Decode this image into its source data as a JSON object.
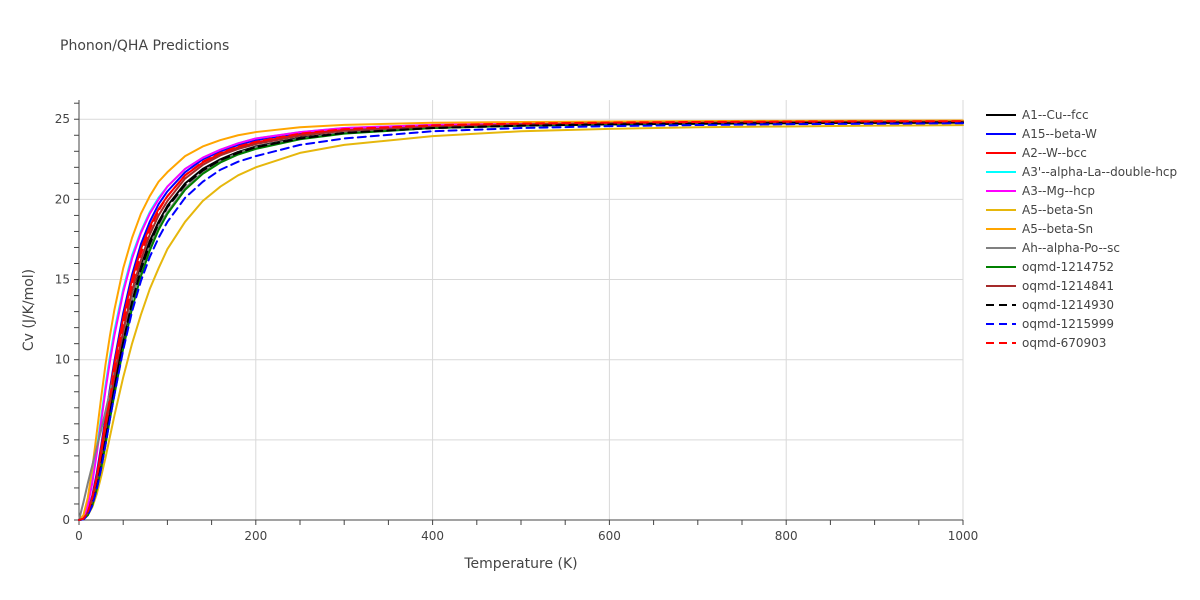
{
  "chart_data": {
    "type": "line",
    "title": "Phonon/QHA Predictions",
    "xlabel": "Temperature (K)",
    "ylabel": "Cv (J/K/mol)",
    "xlim": [
      0,
      1000
    ],
    "ylim": [
      0,
      26.2
    ],
    "x_ticks": [
      0,
      200,
      400,
      600,
      800,
      1000
    ],
    "y_ticks": [
      0,
      5,
      10,
      15,
      20,
      25
    ],
    "grid": true,
    "legend_position": "right",
    "x": [
      0,
      5,
      10,
      15,
      20,
      25,
      30,
      35,
      40,
      50,
      60,
      70,
      80,
      90,
      100,
      120,
      140,
      160,
      180,
      200,
      250,
      300,
      400,
      500,
      600,
      700,
      800,
      900,
      1000
    ],
    "series": [
      {
        "name": "A1--Cu--fcc",
        "color": "#000000",
        "dash": "solid",
        "values": [
          0,
          0.06,
          0.4,
          1.1,
          2.2,
          3.6,
          5.2,
          6.8,
          8.4,
          11.3,
          13.8,
          15.8,
          17.4,
          18.6,
          19.6,
          21.0,
          21.9,
          22.5,
          22.96,
          23.3,
          23.85,
          24.15,
          24.45,
          24.6,
          24.68,
          24.72,
          24.75,
          24.77,
          24.79
        ]
      },
      {
        "name": "A15--beta-W",
        "color": "#0000ff",
        "dash": "solid",
        "values": [
          0,
          0.1,
          0.55,
          1.5,
          2.9,
          4.6,
          6.4,
          8.2,
          9.9,
          12.9,
          15.3,
          17.2,
          18.6,
          19.7,
          20.5,
          21.7,
          22.5,
          23.0,
          23.4,
          23.7,
          24.15,
          24.4,
          24.6,
          24.72,
          24.78,
          24.82,
          24.84,
          24.86,
          24.87
        ]
      },
      {
        "name": "A2--W--bcc",
        "color": "#ff0000",
        "dash": "solid",
        "values": [
          0,
          0.08,
          0.5,
          1.4,
          2.7,
          4.4,
          6.2,
          8.0,
          9.7,
          12.6,
          15.0,
          16.9,
          18.3,
          19.4,
          20.2,
          21.5,
          22.3,
          22.85,
          23.25,
          23.55,
          24.05,
          24.35,
          24.6,
          24.72,
          24.78,
          24.82,
          24.84,
          24.86,
          24.88
        ]
      },
      {
        "name": "A3'--alpha-La--double-hcp",
        "color": "#00ffff",
        "dash": "solid",
        "values": [
          0,
          0.2,
          1.0,
          2.5,
          4.4,
          6.4,
          8.4,
          10.2,
          11.8,
          14.4,
          16.5,
          18.0,
          19.2,
          20.1,
          20.8,
          21.9,
          22.6,
          23.1,
          23.5,
          23.8,
          24.2,
          24.45,
          24.65,
          24.75,
          24.8,
          24.83,
          24.86,
          24.88,
          24.89
        ]
      },
      {
        "name": "A3--Mg--hcp",
        "color": "#ff00ff",
        "dash": "solid",
        "values": [
          0,
          0.15,
          0.9,
          2.3,
          4.1,
          6.1,
          8.1,
          9.9,
          11.5,
          14.2,
          16.3,
          17.9,
          19.1,
          20.0,
          20.8,
          21.9,
          22.6,
          23.1,
          23.5,
          23.8,
          24.2,
          24.45,
          24.65,
          24.75,
          24.8,
          24.83,
          24.86,
          24.88,
          24.89
        ]
      },
      {
        "name": "A5--beta-Sn",
        "color": "#e6b70c",
        "dash": "solid",
        "values": [
          0,
          0.05,
          0.3,
          0.8,
          1.6,
          2.7,
          3.9,
          5.2,
          6.5,
          8.9,
          11.0,
          12.8,
          14.4,
          15.7,
          16.9,
          18.6,
          19.9,
          20.8,
          21.5,
          22.0,
          22.9,
          23.4,
          23.95,
          24.25,
          24.4,
          24.5,
          24.55,
          24.6,
          24.63
        ]
      },
      {
        "name": "A5--beta-Sn",
        "color": "#ffa500",
        "dash": "solid",
        "values": [
          0,
          0.3,
          1.4,
          3.2,
          5.4,
          7.6,
          9.7,
          11.5,
          13.1,
          15.7,
          17.6,
          19.1,
          20.2,
          21.1,
          21.7,
          22.7,
          23.3,
          23.7,
          24.0,
          24.2,
          24.5,
          24.65,
          24.78,
          24.83,
          24.86,
          24.88,
          24.9,
          24.91,
          24.92
        ]
      },
      {
        "name": "Ah--alpha-Po--sc",
        "color": "#808080",
        "dash": "solid",
        "values": [
          0,
          1.1,
          2.3,
          3.4,
          4.5,
          5.6,
          6.8,
          8.0,
          9.2,
          11.6,
          13.8,
          15.6,
          17.1,
          18.3,
          19.2,
          20.7,
          21.7,
          22.4,
          22.9,
          23.25,
          23.8,
          24.15,
          24.45,
          24.6,
          24.68,
          24.72,
          24.75,
          24.78,
          24.8
        ]
      },
      {
        "name": "oqmd-1214752",
        "color": "#008000",
        "dash": "solid",
        "values": [
          0,
          0.04,
          0.3,
          0.9,
          1.9,
          3.2,
          4.7,
          6.3,
          7.8,
          10.7,
          13.2,
          15.2,
          16.8,
          18.1,
          19.1,
          20.6,
          21.6,
          22.3,
          22.8,
          23.15,
          23.75,
          24.1,
          24.45,
          24.6,
          24.68,
          24.72,
          24.76,
          24.78,
          24.8
        ]
      },
      {
        "name": "oqmd-1214841",
        "color": "#a52a2a",
        "dash": "solid",
        "values": [
          0,
          0.07,
          0.45,
          1.2,
          2.4,
          3.9,
          5.6,
          7.3,
          8.9,
          11.8,
          14.3,
          16.2,
          17.8,
          19.0,
          19.9,
          21.3,
          22.15,
          22.75,
          23.15,
          23.45,
          23.98,
          24.28,
          24.55,
          24.68,
          24.75,
          24.79,
          24.82,
          24.84,
          24.85
        ]
      },
      {
        "name": "oqmd-1214930",
        "color": "#000000",
        "dash": "dash",
        "values": [
          0,
          0.05,
          0.35,
          1.0,
          2.0,
          3.4,
          5.0,
          6.6,
          8.2,
          11.1,
          13.6,
          15.6,
          17.2,
          18.5,
          19.5,
          20.9,
          21.8,
          22.45,
          22.9,
          23.25,
          23.8,
          24.15,
          24.45,
          24.6,
          24.68,
          24.73,
          24.76,
          24.78,
          24.8
        ]
      },
      {
        "name": "oqmd-1215999",
        "color": "#0000ff",
        "dash": "dash",
        "values": [
          0,
          0.04,
          0.3,
          0.9,
          1.9,
          3.2,
          4.7,
          6.3,
          7.8,
          10.6,
          13.0,
          14.9,
          16.4,
          17.6,
          18.6,
          20.1,
          21.1,
          21.85,
          22.35,
          22.7,
          23.4,
          23.8,
          24.25,
          24.45,
          24.57,
          24.64,
          24.69,
          24.72,
          24.75
        ]
      },
      {
        "name": "oqmd-670903",
        "color": "#ff0000",
        "dash": "dash",
        "values": [
          0,
          0.08,
          0.5,
          1.35,
          2.6,
          4.2,
          5.9,
          7.6,
          9.3,
          12.2,
          14.7,
          16.6,
          18.1,
          19.3,
          20.2,
          21.5,
          22.35,
          22.9,
          23.3,
          23.6,
          24.1,
          24.38,
          24.62,
          24.73,
          24.79,
          24.83,
          24.85,
          24.87,
          24.88
        ]
      }
    ]
  }
}
